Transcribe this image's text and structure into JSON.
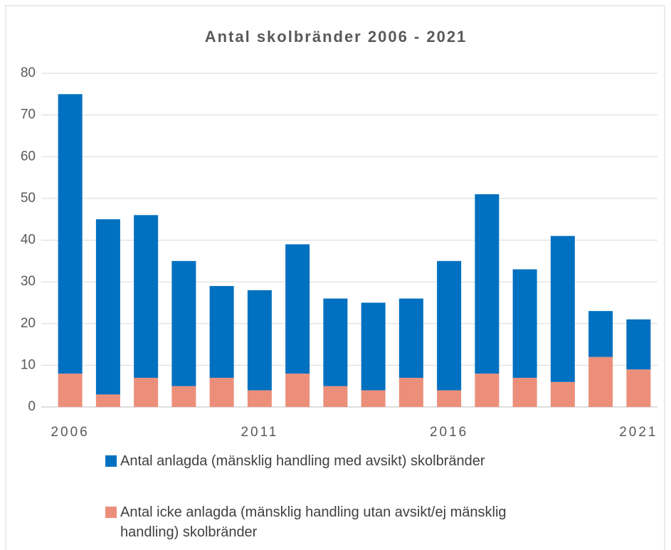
{
  "chart_data": {
    "type": "stacked_bar",
    "title": "Antal skolbränder 2006 - 2021",
    "categories": [
      "2006",
      null,
      null,
      null,
      null,
      "2011",
      null,
      null,
      null,
      null,
      "2016",
      null,
      null,
      null,
      null,
      "2021"
    ],
    "series": [
      {
        "name": "Antal anlagda (mänsklig handling med avsikt) skolbränder",
        "color": "#0070c0",
        "values": [
          67,
          42,
          39,
          30,
          22,
          24,
          31,
          21,
          21,
          19,
          31,
          43,
          26,
          35,
          11,
          12
        ]
      },
      {
        "name": "Antal icke anlagda (mänsklig handling utan avsikt/ej mänsklig handling) skolbränder",
        "color": "#ec8f7a",
        "values": [
          8,
          3,
          7,
          5,
          7,
          4,
          8,
          5,
          4,
          7,
          4,
          8,
          7,
          6,
          12,
          9
        ]
      }
    ],
    "ylim": [
      0,
      80
    ],
    "yticks": [
      0,
      10,
      20,
      30,
      40,
      50,
      60,
      70,
      80
    ],
    "grid": true
  }
}
